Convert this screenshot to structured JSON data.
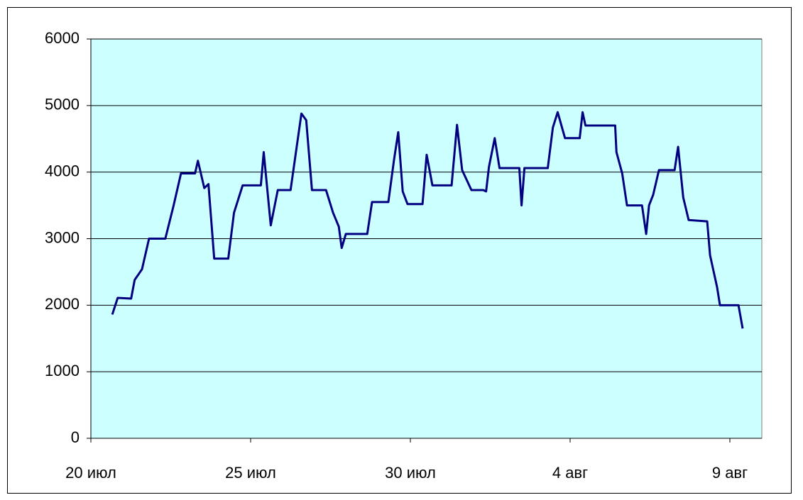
{
  "chart_data": {
    "type": "line",
    "x": [
      0.67,
      0.84,
      1.26,
      1.37,
      1.6,
      1.82,
      2.33,
      2.59,
      2.82,
      3.26,
      3.35,
      3.55,
      3.68,
      3.86,
      4.3,
      4.48,
      4.75,
      5.32,
      5.41,
      5.63,
      5.85,
      6.25,
      6.59,
      6.74,
      6.92,
      7.36,
      7.58,
      7.76,
      7.85,
      7.98,
      8.65,
      8.8,
      9.31,
      9.49,
      9.62,
      9.76,
      9.91,
      10.38,
      10.51,
      10.69,
      11.29,
      11.46,
      11.62,
      11.91,
      12.28,
      12.37,
      12.46,
      12.64,
      12.79,
      13.41,
      13.48,
      13.57,
      14.3,
      14.46,
      14.61,
      14.84,
      15.3,
      15.39,
      15.48,
      16.41,
      16.45,
      16.63,
      16.78,
      17.25,
      17.38,
      17.47,
      17.6,
      17.78,
      18.27,
      18.38,
      18.54,
      18.71,
      19.29,
      19.38,
      19.6,
      19.69,
      20.27,
      20.4
    ],
    "series": [
      {
        "color": "#000080",
        "values": [
          1860,
          2110,
          2100,
          2380,
          2540,
          3000,
          3000,
          3500,
          3980,
          3980,
          4170,
          3760,
          3820,
          2700,
          2700,
          3390,
          3800,
          3800,
          4300,
          3200,
          3730,
          3730,
          4880,
          4780,
          3730,
          3730,
          3390,
          3180,
          2860,
          3070,
          3070,
          3550,
          3550,
          4190,
          4600,
          3710,
          3520,
          3520,
          4260,
          3800,
          3800,
          4710,
          4030,
          3730,
          3730,
          3710,
          4080,
          4510,
          4060,
          4060,
          3500,
          4060,
          4060,
          4670,
          4900,
          4510,
          4510,
          4900,
          4700,
          4700,
          4300,
          3980,
          3500,
          3500,
          3070,
          3500,
          3660,
          4030,
          4030,
          4380,
          3620,
          3280,
          3260,
          2750,
          2270,
          2000,
          2000,
          1650
        ]
      }
    ],
    "xlim": [
      0,
      21
    ],
    "xticks": [
      {
        "value": 0,
        "label": "20 июл"
      },
      {
        "value": 5,
        "label": "25 июл"
      },
      {
        "value": 10,
        "label": "30 июл"
      },
      {
        "value": 15,
        "label": "4 авг"
      },
      {
        "value": 20,
        "label": "9 авг"
      }
    ],
    "ylim": [
      0,
      6000
    ],
    "yticks": [
      0,
      1000,
      2000,
      3000,
      4000,
      5000,
      6000
    ],
    "grid": true,
    "plot_background": "#ccffff"
  }
}
